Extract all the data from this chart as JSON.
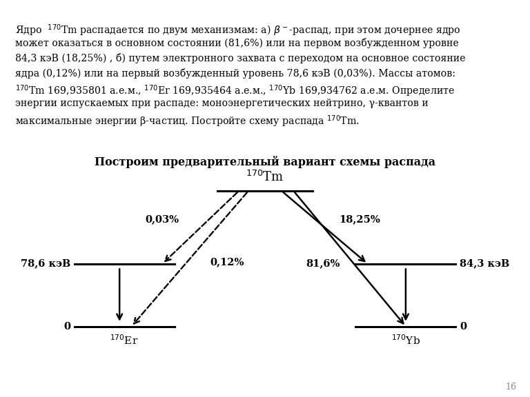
{
  "title_text": "Построим предварительный вариант схемы распада",
  "background_color": "#ffffff",
  "text_color": "#000000",
  "tm_label": "$^{170}$Tm",
  "er_label": "$^{170}$Er",
  "yb_label": "$^{170}$Yb",
  "level_78_label": "78,6 кэВ",
  "level_84_label": "84,3 кэВ",
  "level_0_left_label": "0",
  "level_0_right_label": "0",
  "pct_003": "0,03%",
  "pct_012": "0,12%",
  "pct_1825": "18,25%",
  "pct_816": "81,6%",
  "page_number": "16",
  "paragraph_lines": [
    "Ядро  $^{170}$Tm распадается по двум механизмам: а) $\\beta^-$-распад, при этом дочернее ядро",
    "может оказаться в основном состоянии (81,6%) или на первом возбужденном уровне",
    "84,3 кэВ (18,25%) , б) путем электронного захвата с переходом на основное состояние",
    "ядра (0,12%) или на первый возбужденный уровень 78,6 кэВ (0,03%). Массы атомов:",
    "$^{170}$Tm 169,935801 а.е.м., $^{170}$Er 169,935464 а.е.м., $^{170}$Yb 169,934762 а.е.м. Определите",
    "энергии испускаемых при распаде: моноэнергетических нейтрино, γ-квантов и",
    "максимальные энергии β-частиц. Постройте схему распада $^{170}$Tm."
  ]
}
